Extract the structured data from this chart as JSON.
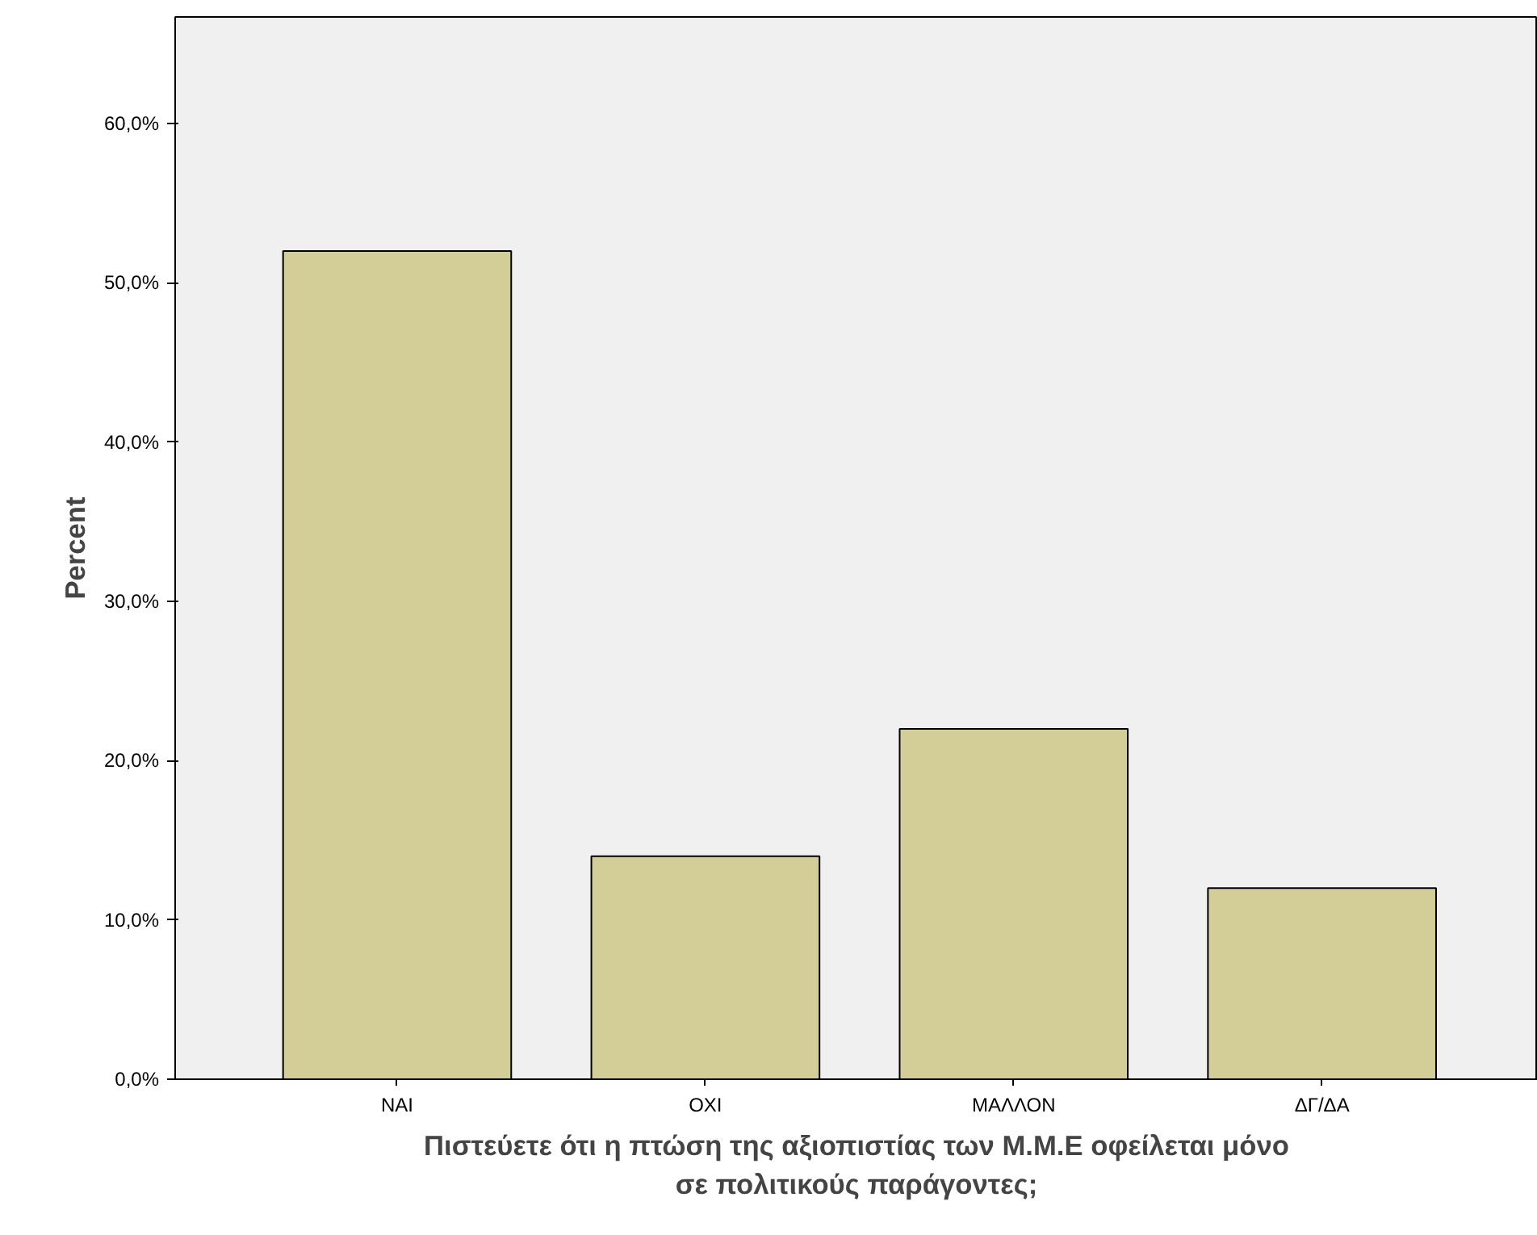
{
  "chart_data": {
    "type": "bar",
    "xlabel": "Πιστεύετε ότι η πτώση της αξιοπιστίας των Μ.Μ.Ε οφείλεται μόνο σε πολιτικούς παράγοντες;",
    "ylabel": "Percent",
    "categories": [
      "ΝΑΙ",
      "ΟΧΙ",
      "ΜΑΛΛΟΝ",
      "ΔΓ/ΔΑ"
    ],
    "values": [
      52,
      14,
      22,
      12
    ],
    "color": "#d3ce98",
    "ylim": [
      0,
      66.7
    ],
    "yticks": [
      {
        "value": 0,
        "label": "0,0%"
      },
      {
        "value": 10,
        "label": "10,0%"
      },
      {
        "value": 20,
        "label": "20,0%"
      },
      {
        "value": 30,
        "label": "30,0%"
      },
      {
        "value": 40,
        "label": "40,0%"
      },
      {
        "value": 50,
        "label": "50,0%"
      },
      {
        "value": 60,
        "label": "60,0%"
      }
    ],
    "grid": false
  }
}
